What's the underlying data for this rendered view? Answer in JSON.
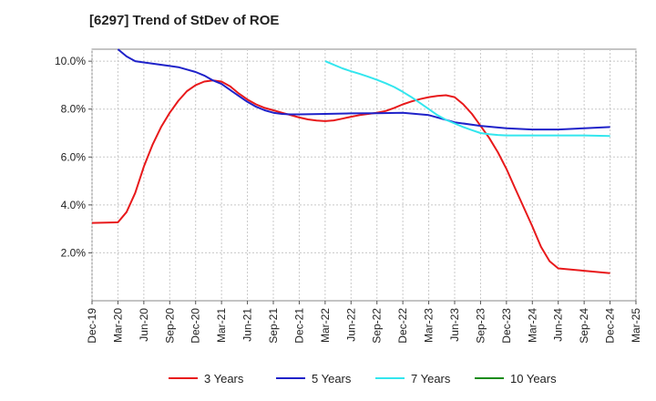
{
  "chart_data": {
    "type": "line",
    "title": "[6297]  Trend of StDev of ROE",
    "xlabel": "",
    "ylabel": "",
    "x_ticks": [
      "Dec-19",
      "Mar-20",
      "Jun-20",
      "Sep-20",
      "Dec-20",
      "Mar-21",
      "Jun-21",
      "Sep-21",
      "Dec-21",
      "Mar-22",
      "Jun-22",
      "Sep-22",
      "Dec-22",
      "Mar-23",
      "Jun-23",
      "Sep-23",
      "Dec-23",
      "Mar-24",
      "Jun-24",
      "Sep-24",
      "Dec-24",
      "Mar-25"
    ],
    "y_ticks": [
      "2.0%",
      "4.0%",
      "6.0%",
      "8.0%",
      "10.0%"
    ],
    "y_tick_values": [
      2,
      4,
      6,
      8,
      10
    ],
    "ylim": [
      0.0,
      10.5
    ],
    "grid": true,
    "legend_position": "bottom",
    "series": [
      {
        "name": "3 Years",
        "color": "#e8191b",
        "x": [
          "Dec-19",
          "Mar-20",
          "Apr-20",
          "May-20",
          "Jun-20",
          "Jul-20",
          "Aug-20",
          "Sep-20",
          "Oct-20",
          "Nov-20",
          "Dec-20",
          "Jan-21",
          "Feb-21",
          "Mar-21",
          "Apr-21",
          "May-21",
          "Jun-21",
          "Jul-21",
          "Aug-21",
          "Sep-21",
          "Oct-21",
          "Nov-21",
          "Dec-21",
          "Jan-22",
          "Feb-22",
          "Mar-22",
          "Apr-22",
          "May-22",
          "Jun-22",
          "Jul-22",
          "Aug-22",
          "Sep-22",
          "Oct-22",
          "Nov-22",
          "Dec-22",
          "Jan-23",
          "Feb-23",
          "Mar-23",
          "Apr-23",
          "May-23",
          "Jun-23",
          "Jul-23",
          "Aug-23",
          "Sep-23",
          "Oct-23",
          "Nov-23",
          "Dec-23",
          "Jan-24",
          "Feb-24",
          "Mar-24",
          "Apr-24",
          "May-24",
          "Jun-24",
          "Sep-24",
          "Dec-24"
        ],
        "y": [
          3.25,
          3.27,
          3.7,
          4.5,
          5.6,
          6.5,
          7.25,
          7.85,
          8.35,
          8.75,
          9.0,
          9.15,
          9.2,
          9.15,
          8.95,
          8.65,
          8.4,
          8.2,
          8.05,
          7.95,
          7.85,
          7.75,
          7.65,
          7.57,
          7.52,
          7.5,
          7.53,
          7.6,
          7.68,
          7.75,
          7.8,
          7.85,
          7.92,
          8.05,
          8.2,
          8.32,
          8.42,
          8.5,
          8.55,
          8.58,
          8.5,
          8.2,
          7.8,
          7.3,
          6.8,
          6.2,
          5.5,
          4.7,
          3.9,
          3.1,
          2.25,
          1.65,
          1.35,
          1.25,
          1.15
        ]
      },
      {
        "name": "5 Years",
        "color": "#1f22c9",
        "x": [
          "Mar-20",
          "Apr-20",
          "May-20",
          "Jun-20",
          "Sep-20",
          "Oct-20",
          "Nov-20",
          "Dec-20",
          "Jan-21",
          "Feb-21",
          "Mar-21",
          "Apr-21",
          "May-21",
          "Jun-21",
          "Jul-21",
          "Aug-21",
          "Sep-21",
          "Oct-21",
          "Nov-21",
          "Dec-21",
          "Mar-22",
          "Jun-22",
          "Sep-22",
          "Dec-22",
          "Mar-23",
          "Jun-23",
          "Sep-23",
          "Dec-23",
          "Mar-24",
          "Jun-24",
          "Sep-24",
          "Dec-24"
        ],
        "y": [
          10.5,
          10.2,
          10.0,
          9.95,
          9.8,
          9.75,
          9.65,
          9.55,
          9.4,
          9.2,
          9.05,
          8.8,
          8.55,
          8.3,
          8.1,
          7.95,
          7.85,
          7.8,
          7.78,
          7.78,
          7.8,
          7.82,
          7.83,
          7.85,
          7.75,
          7.45,
          7.3,
          7.2,
          7.15,
          7.15,
          7.2,
          7.25
        ]
      },
      {
        "name": "7 Years",
        "color": "#33e6ee",
        "x": [
          "Mar-22",
          "Apr-22",
          "May-22",
          "Jun-22",
          "Jul-22",
          "Aug-22",
          "Sep-22",
          "Oct-22",
          "Nov-22",
          "Dec-22",
          "Jan-23",
          "Feb-23",
          "Mar-23",
          "Apr-23",
          "May-23",
          "Jun-23",
          "Jul-23",
          "Aug-23",
          "Sep-23",
          "Oct-23",
          "Nov-23",
          "Dec-23",
          "Mar-24",
          "Jun-24",
          "Sep-24",
          "Dec-24"
        ],
        "y": [
          10.0,
          9.85,
          9.7,
          9.58,
          9.47,
          9.35,
          9.22,
          9.08,
          8.92,
          8.72,
          8.5,
          8.25,
          8.0,
          7.75,
          7.55,
          7.4,
          7.25,
          7.12,
          7.0,
          6.95,
          6.92,
          6.9,
          6.9,
          6.9,
          6.9,
          6.88
        ]
      },
      {
        "name": "10 Years",
        "color": "#1a8c1a",
        "x": [],
        "y": []
      }
    ]
  }
}
